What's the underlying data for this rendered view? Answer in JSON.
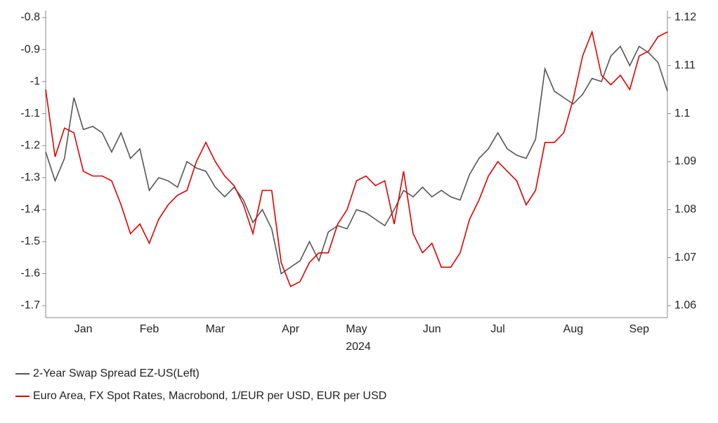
{
  "chart_data": {
    "type": "line",
    "x_label": "2024",
    "categories": [
      null,
      null,
      null,
      null,
      "Jan",
      null,
      null,
      null,
      null,
      null,
      null,
      "Feb",
      null,
      null,
      null,
      null,
      null,
      null,
      "Mar",
      null,
      null,
      null,
      null,
      null,
      null,
      null,
      "Apr",
      null,
      null,
      null,
      null,
      null,
      null,
      "May",
      null,
      null,
      null,
      null,
      null,
      null,
      null,
      "Jun",
      null,
      null,
      null,
      null,
      null,
      null,
      "Jul",
      null,
      null,
      null,
      null,
      null,
      null,
      null,
      "Aug",
      null,
      null,
      null,
      null,
      null,
      null,
      "Sep",
      null,
      null,
      null
    ],
    "series": [
      {
        "name": "2-Year Swap Spread EZ-US(Left)",
        "color": "#555555",
        "values": [
          -1.22,
          -1.31,
          -1.24,
          -1.05,
          -1.15,
          -1.14,
          -1.16,
          -1.22,
          -1.16,
          -1.24,
          -1.21,
          -1.34,
          -1.3,
          -1.31,
          -1.33,
          -1.25,
          -1.27,
          -1.28,
          -1.33,
          -1.36,
          -1.33,
          -1.37,
          -1.44,
          -1.4,
          -1.46,
          -1.6,
          -1.58,
          -1.56,
          -1.5,
          -1.56,
          -1.47,
          -1.45,
          -1.46,
          -1.4,
          -1.41,
          -1.43,
          -1.45,
          -1.4,
          -1.34,
          -1.36,
          -1.33,
          -1.36,
          -1.34,
          -1.36,
          -1.37,
          -1.29,
          -1.24,
          -1.21,
          -1.16,
          -1.21,
          -1.23,
          -1.24,
          -1.18,
          -0.96,
          -1.03,
          -1.05,
          -1.07,
          -1.04,
          -0.99,
          -1.0,
          -0.92,
          -0.89,
          -0.95,
          -0.89,
          -0.91,
          -0.94,
          -1.03
        ]
      },
      {
        "name": "Euro Area, FX Spot Rates, Macrobond, 1/EUR per USD, EUR per USD",
        "color": "#e00000",
        "axis": "y2",
        "values": [
          1.105,
          1.091,
          1.097,
          1.096,
          1.088,
          1.087,
          1.087,
          1.086,
          1.081,
          1.075,
          1.077,
          1.073,
          1.078,
          1.081,
          1.083,
          1.084,
          1.09,
          1.094,
          1.09,
          1.087,
          1.085,
          1.081,
          1.075,
          1.084,
          1.084,
          1.069,
          1.064,
          1.065,
          1.069,
          1.071,
          1.071,
          1.077,
          1.08,
          1.086,
          1.087,
          1.085,
          1.086,
          1.077,
          1.088,
          1.075,
          1.071,
          1.073,
          1.068,
          1.068,
          1.071,
          1.078,
          1.082,
          1.087,
          1.09,
          1.088,
          1.086,
          1.081,
          1.084,
          1.094,
          1.094,
          1.096,
          1.103,
          1.112,
          1.117,
          1.108,
          1.106,
          1.108,
          1.105,
          1.112,
          1.113,
          1.116,
          1.117
        ]
      }
    ],
    "ylim": [
      -1.7,
      -0.8
    ],
    "yticks": [
      -1.7,
      -1.6,
      -1.5,
      -1.4,
      -1.3,
      -1.2,
      -1.1,
      -1.0,
      -0.9,
      -0.8
    ],
    "y2lim": [
      1.06,
      1.12
    ],
    "y2ticks": [
      1.06,
      1.07,
      1.08,
      1.09,
      1.1,
      1.11,
      1.12
    ]
  }
}
